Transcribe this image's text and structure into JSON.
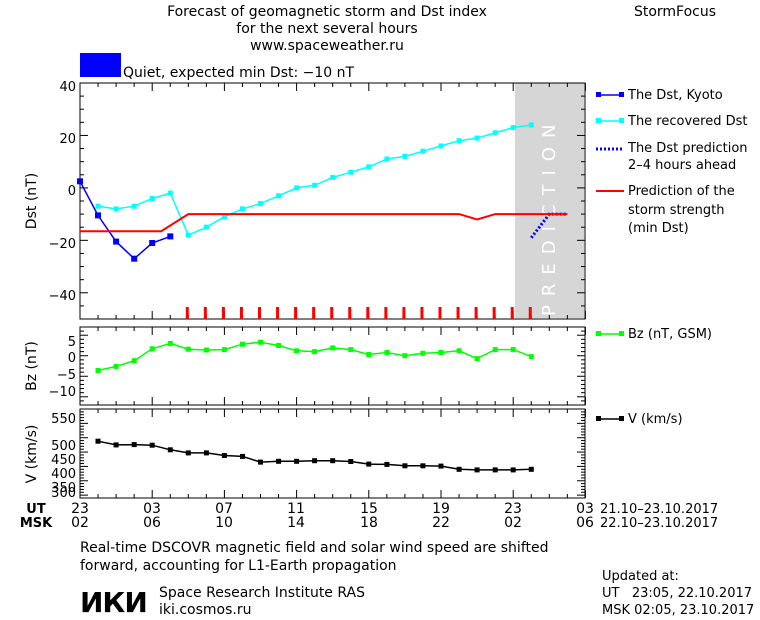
{
  "header": {
    "title_lines": [
      "Forecast of geomagnetic storm and Dst index",
      "for the next several hours",
      "www.spaceweather.ru"
    ],
    "brand": "StormFocus"
  },
  "status": {
    "text": "Quiet, expected min Dst: −10 nT",
    "color": "#0000ff"
  },
  "prediction_label": "PREDICTION",
  "legend": {
    "dst_kyoto": "The Dst, Kyoto",
    "recovered": "The recovered Dst",
    "dst_prediction": [
      "The Dst prediction",
      "2–4 hours ahead"
    ],
    "storm_strength": [
      "Prediction of the",
      "storm strength",
      "(min Dst)"
    ],
    "bz": "Bz (nT, GSM)",
    "v": "V (km/s)"
  },
  "time_axis": {
    "ut_label": "UT",
    "msk_label": "MSK",
    "ut_ticks": [
      "23",
      "03",
      "07",
      "11",
      "15",
      "19",
      "23",
      "03"
    ],
    "msk_ticks": [
      "02",
      "06",
      "10",
      "14",
      "18",
      "22",
      "02",
      "06"
    ],
    "ut_range": "21.10–23.10.2017",
    "msk_range": "22.10–23.10.2017"
  },
  "footer": {
    "note_lines": [
      "Real-time DSCOVR magnetic field and solar wind speed are shifted",
      "forward, accounting for L1-Earth propagation"
    ],
    "logo_text": "ИКИ",
    "institute": "Space Research Institute RAS",
    "site": "iki.cosmos.ru",
    "updated_label": "Updated at:",
    "updated_ut": "UT   23:05, 22.10.2017",
    "updated_msk": "MSK 02:05, 23.10.2017"
  },
  "chart_data": [
    {
      "type": "line",
      "ylabel": "Dst (nT)",
      "ylim": [
        -50,
        40
      ],
      "yticks": [
        "40",
        "20",
        "0",
        "−20",
        "−40"
      ],
      "x_unit": "hours after 23 UT",
      "xlim": [
        0,
        28
      ],
      "series": [
        {
          "name": "The Dst, Kyoto",
          "color": "#0000ff",
          "x": [
            0,
            1,
            2,
            3,
            4,
            5
          ],
          "y": [
            2.5,
            -10.5,
            -20.5,
            -27,
            -21,
            -18.5
          ]
        },
        {
          "name": "The recovered Dst",
          "color": "#00ffff",
          "x": [
            1,
            2,
            3,
            4,
            5,
            6,
            7,
            8,
            9,
            10,
            11,
            12,
            13,
            14,
            15,
            16,
            17,
            18,
            19,
            20,
            21,
            22,
            23,
            24,
            25
          ],
          "y": [
            -7,
            -8,
            -7,
            -4,
            -2,
            -18,
            -15,
            -11,
            -8,
            -6,
            -3,
            0,
            1,
            4,
            6,
            8,
            11,
            12,
            14,
            16,
            18,
            19,
            21,
            23,
            24
          ]
        },
        {
          "name": "The Dst prediction 2–4 hours ahead",
          "color": "#0000ff",
          "x": [
            25,
            26,
            27
          ],
          "y": [
            -19,
            -10,
            -10
          ]
        },
        {
          "name": "Prediction of the storm strength (min Dst)",
          "color": "#ff0000",
          "x": [
            0,
            4.5,
            6,
            21,
            22,
            23,
            24,
            27
          ],
          "y": [
            -16.5,
            -16.5,
            -10,
            -10,
            -12,
            -10,
            -10,
            -10
          ]
        }
      ],
      "prediction_region_x": [
        24.9,
        28
      ],
      "tick_marks_x": [
        6,
        7,
        8,
        9,
        10,
        11,
        12,
        13,
        14,
        15,
        16,
        17,
        18,
        19,
        20,
        21,
        22,
        23,
        24,
        25
      ]
    },
    {
      "type": "line",
      "ylabel": "Bz (nT)",
      "ylim": [
        -12,
        7
      ],
      "yticks": [
        "5",
        "0",
        "−5",
        "−10"
      ],
      "xlim": [
        0,
        28
      ],
      "series": [
        {
          "name": "Bz (nT, GSM)",
          "color": "#00ff00",
          "x": [
            1,
            2,
            3,
            4,
            5,
            6,
            7,
            8,
            9,
            10,
            11,
            12,
            13,
            14,
            15,
            16,
            17,
            18,
            19,
            20,
            21,
            22,
            23,
            24,
            25
          ],
          "y": [
            -3.6,
            -2.6,
            -1.2,
            1.7,
            3.0,
            1.6,
            1.4,
            1.5,
            2.8,
            3.3,
            2.5,
            1.2,
            1.0,
            1.9,
            1.5,
            0.3,
            0.8,
            0.0,
            0.6,
            0.8,
            1.2,
            -0.7,
            1.5,
            1.5,
            -0.2
          ]
        }
      ]
    },
    {
      "type": "line",
      "ylabel": "V (km/s)",
      "ylim": [
        290,
        600
      ],
      "yticks": [
        "550",
        "500",
        "450",
        "400",
        "350",
        "300"
      ],
      "xlim": [
        0,
        28
      ],
      "series": [
        {
          "name": "V (km/s)",
          "color": "#000000",
          "x": [
            1,
            2,
            3,
            4,
            5,
            6,
            7,
            8,
            9,
            10,
            11,
            12,
            13,
            14,
            15,
            16,
            17,
            18,
            19,
            20,
            21,
            22,
            23,
            24,
            25
          ],
          "y": [
            488,
            475,
            476,
            474,
            458,
            447,
            447,
            438,
            435,
            415,
            418,
            418,
            420,
            420,
            417,
            408,
            407,
            402,
            402,
            401,
            390,
            388,
            388,
            388,
            390
          ]
        }
      ]
    }
  ]
}
